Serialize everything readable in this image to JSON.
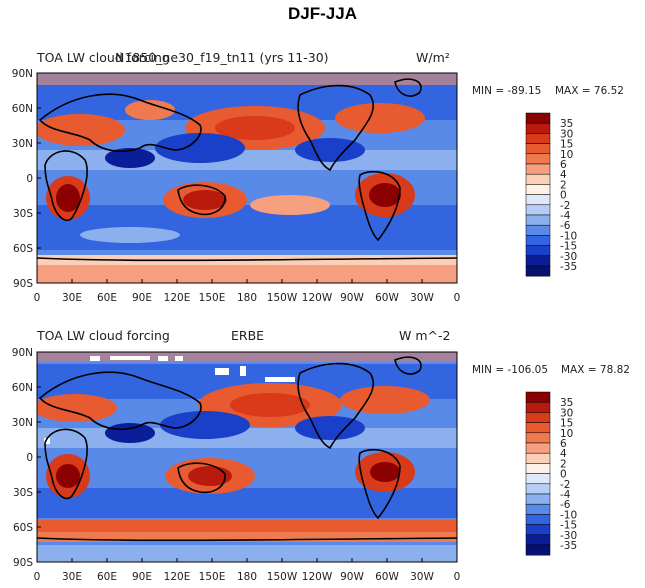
{
  "figure": {
    "title": "DJF-JJA"
  },
  "chart_data": [
    {
      "type": "heatmap",
      "title_left": "TOA LW cloud forcing",
      "title_center": "N1850_ne30_f19_tn11 (yrs 11-30)",
      "units": "W/m²",
      "min_label": "MIN = -89.15",
      "max_label": "MAX =  76.52",
      "stats": {
        "min": -89.15,
        "max": 76.52
      },
      "x_ticks": [
        "0",
        "30E",
        "60E",
        "90E",
        "120E",
        "150E",
        "180",
        "150W",
        "120W",
        "90W",
        "60W",
        "30W",
        "0"
      ],
      "y_ticks": [
        "90N",
        "60N",
        "30N",
        "0",
        "30S",
        "60S",
        "90S"
      ],
      "xlim": [
        0,
        360
      ],
      "ylim": [
        -90,
        90
      ],
      "legend_levels": [
        "35",
        "30",
        "15",
        "10",
        "6",
        "4",
        "2",
        "0",
        "-2",
        "-4",
        "-6",
        "-10",
        "-15",
        "-30",
        "-35"
      ]
    },
    {
      "type": "heatmap",
      "title_left": "TOA LW cloud forcing",
      "title_center": "ERBE",
      "units": "W m^-2",
      "min_label": "MIN = -106.05",
      "max_label": "MAX =  78.82",
      "stats": {
        "min": -106.05,
        "max": 78.82
      },
      "x_ticks": [
        "0",
        "30E",
        "60E",
        "90E",
        "120E",
        "150E",
        "180",
        "150W",
        "120W",
        "90W",
        "60W",
        "30W",
        "0"
      ],
      "y_ticks": [
        "90N",
        "60N",
        "30N",
        "0",
        "30S",
        "60S",
        "90S"
      ],
      "xlim": [
        0,
        360
      ],
      "ylim": [
        -90,
        90
      ],
      "legend_levels": [
        "35",
        "30",
        "15",
        "10",
        "6",
        "4",
        "2",
        "0",
        "-2",
        "-4",
        "-6",
        "-10",
        "-15",
        "-30",
        "-35"
      ]
    }
  ],
  "colors": {
    "levels": [
      "#8b0000",
      "#b81a0e",
      "#d83a1a",
      "#e85a30",
      "#f07a50",
      "#f7a080",
      "#fcd0b8",
      "#fff0e6",
      "#dde8fb",
      "#b8cdf5",
      "#8cb0ee",
      "#5a8ae8",
      "#3465e0",
      "#1a3fc8",
      "#0a1e9a",
      "#061270"
    ]
  }
}
